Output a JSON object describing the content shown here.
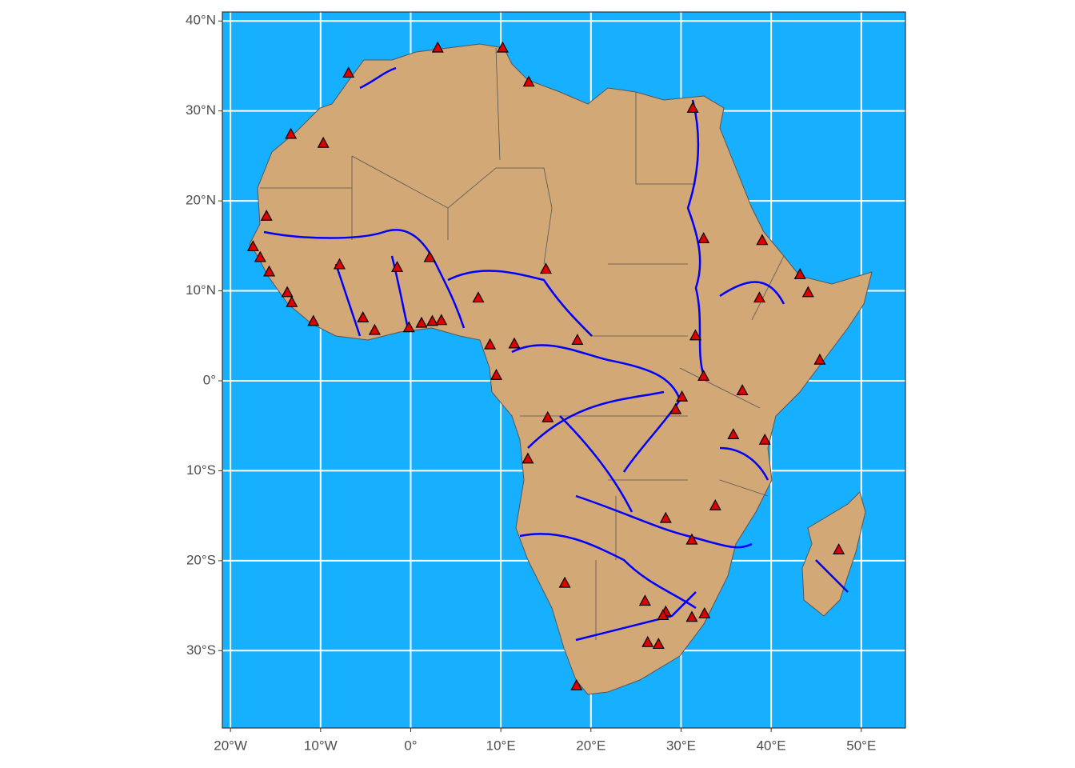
{
  "chart_data": {
    "type": "map",
    "xlim": [
      -20.9,
      54.9
    ],
    "ylim": [
      -38.6,
      41
    ],
    "xticks": [
      {
        "value": -20,
        "label": "20°W"
      },
      {
        "value": -10,
        "label": "10°W"
      },
      {
        "value": 0,
        "label": "0°"
      },
      {
        "value": 10,
        "label": "10°E"
      },
      {
        "value": 20,
        "label": "20°E"
      },
      {
        "value": 30,
        "label": "30°E"
      },
      {
        "value": 40,
        "label": "40°E"
      },
      {
        "value": 50,
        "label": "50°E"
      }
    ],
    "yticks": [
      {
        "value": -30,
        "label": "30°S"
      },
      {
        "value": -20,
        "label": "20°S"
      },
      {
        "value": -10,
        "label": "10°S"
      },
      {
        "value": 0,
        "label": "0°"
      },
      {
        "value": 10,
        "label": "10°N"
      },
      {
        "value": 20,
        "label": "20°N"
      },
      {
        "value": 30,
        "label": "30°N"
      },
      {
        "value": 40,
        "label": "40°N"
      }
    ],
    "grid": true,
    "ocean_color": "#17afff",
    "land_color": "#d2a877",
    "river_color": "#0000ff",
    "points": {
      "color": "#e00000",
      "lon": [
        3.0,
        10.2,
        13.1,
        -6.9,
        -13.3,
        -9.7,
        31.3,
        -16.0,
        -17.5,
        -16.7,
        -15.7,
        -7.9,
        -1.5,
        2.1,
        -13.7,
        -13.2,
        -10.8,
        -5.3,
        -4.0,
        -0.2,
        1.2,
        2.4,
        3.4,
        7.5,
        15.0,
        8.8,
        11.5,
        18.5,
        9.5,
        15.2,
        13.0,
        32.5,
        39.0,
        43.2,
        44.1,
        38.7,
        31.6,
        32.5,
        30.1,
        29.4,
        36.8,
        45.4,
        35.8,
        39.3,
        33.8,
        28.3,
        31.2,
        47.5,
        17.1,
        26.0,
        28.3,
        28.0,
        31.2,
        32.6,
        26.3,
        27.5,
        18.4
      ],
      "lat": [
        37.0,
        37.0,
        33.2,
        34.2,
        27.4,
        26.4,
        30.3,
        18.3,
        14.9,
        13.7,
        12.1,
        12.9,
        12.6,
        13.7,
        9.8,
        8.7,
        6.6,
        7.0,
        5.6,
        5.9,
        6.4,
        6.6,
        6.7,
        9.2,
        12.4,
        4.0,
        4.1,
        4.5,
        0.6,
        -4.1,
        -8.7,
        15.8,
        15.6,
        11.8,
        9.8,
        9.2,
        5.0,
        0.5,
        -1.8,
        -3.2,
        -1.1,
        2.3,
        -6.0,
        -6.6,
        -13.9,
        -15.3,
        -17.7,
        -18.8,
        -22.5,
        -24.5,
        -25.7,
        -26.1,
        -26.3,
        -25.9,
        -29.1,
        -29.3,
        -33.9
      ]
    }
  }
}
